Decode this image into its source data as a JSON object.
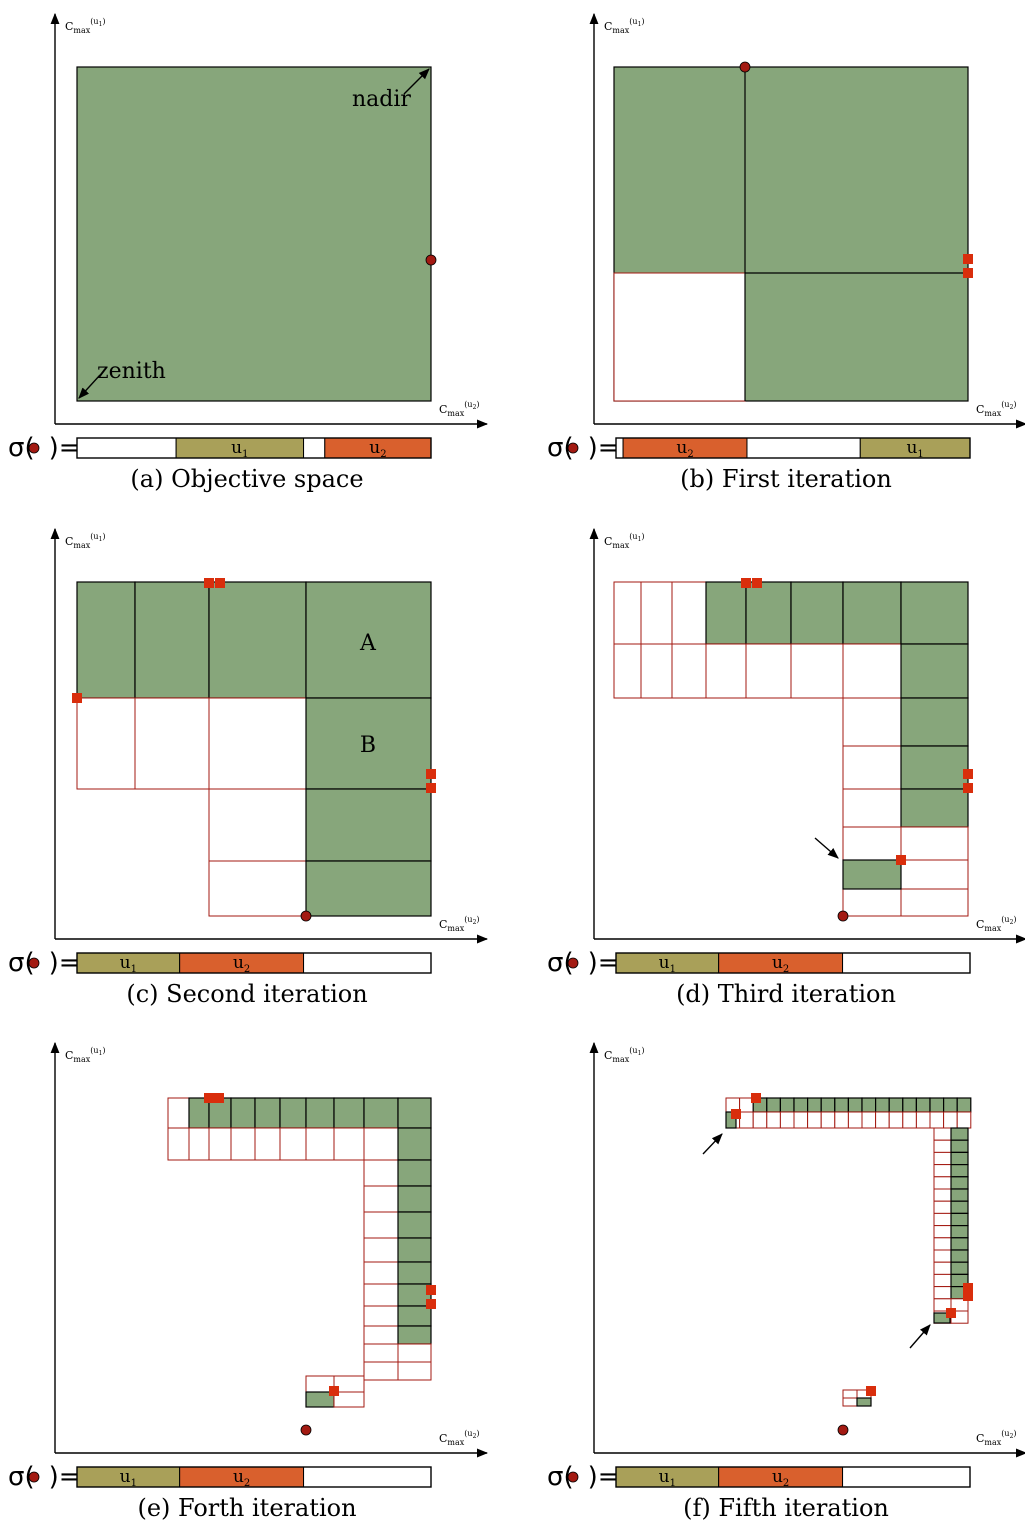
{
  "colors": {
    "green": "#87a67b",
    "olive": "#a9a059",
    "orange": "#d9602d",
    "red_marker": "#d92e0c",
    "dark_red": "#a31a12"
  },
  "axis_labels": {
    "main": "C",
    "sub": "max",
    "u1": "(u",
    "u2": "(u",
    "i1": "1",
    "i2": "2",
    "close": ")"
  },
  "sigma": {
    "prefix": "σ(",
    "suffix": ")="
  },
  "panels": [
    {
      "id": "a",
      "caption": "(a) Objective space",
      "annotations": [
        "nadir",
        "zenith"
      ],
      "sequence": [
        {
          "label": "",
          "color": "white",
          "w": 0.28
        },
        {
          "label": "u",
          "sub": "1",
          "color": "olive",
          "w": 0.36
        },
        {
          "label": "",
          "color": "white",
          "w": 0.06
        },
        {
          "label": "u",
          "sub": "2",
          "color": "orange",
          "w": 0.3
        }
      ]
    },
    {
      "id": "b",
      "caption": "(b) First iteration",
      "annotations": [],
      "sequence": [
        {
          "label": "",
          "color": "white",
          "w": 0.02
        },
        {
          "label": "u",
          "sub": "2",
          "color": "orange",
          "w": 0.35
        },
        {
          "label": "",
          "color": "white",
          "w": 0.32
        },
        {
          "label": "u",
          "sub": "1",
          "color": "olive",
          "w": 0.31
        }
      ]
    },
    {
      "id": "c",
      "caption": "(c) Second iteration",
      "annotations": [
        "A",
        "B"
      ],
      "sequence": [
        {
          "label": "u",
          "sub": "1",
          "color": "olive",
          "w": 0.29
        },
        {
          "label": "u",
          "sub": "2",
          "color": "orange",
          "w": 0.35
        },
        {
          "label": "",
          "color": "white",
          "w": 0.36
        }
      ]
    },
    {
      "id": "d",
      "caption": "(d) Third iteration",
      "annotations": [],
      "sequence": [
        {
          "label": "u",
          "sub": "1",
          "color": "olive",
          "w": 0.29
        },
        {
          "label": "u",
          "sub": "2",
          "color": "orange",
          "w": 0.35
        },
        {
          "label": "",
          "color": "white",
          "w": 0.36
        }
      ]
    },
    {
      "id": "e",
      "caption": "(e) Forth iteration",
      "annotations": [],
      "sequence": [
        {
          "label": "u",
          "sub": "1",
          "color": "olive",
          "w": 0.29
        },
        {
          "label": "u",
          "sub": "2",
          "color": "orange",
          "w": 0.35
        },
        {
          "label": "",
          "color": "white",
          "w": 0.36
        }
      ]
    },
    {
      "id": "f",
      "caption": "(f) Fifth iteration",
      "annotations": [],
      "sequence": [
        {
          "label": "u",
          "sub": "1",
          "color": "olive",
          "w": 0.29
        },
        {
          "label": "u",
          "sub": "2",
          "color": "orange",
          "w": 0.35
        },
        {
          "label": "",
          "color": "white",
          "w": 0.36
        }
      ]
    }
  ]
}
